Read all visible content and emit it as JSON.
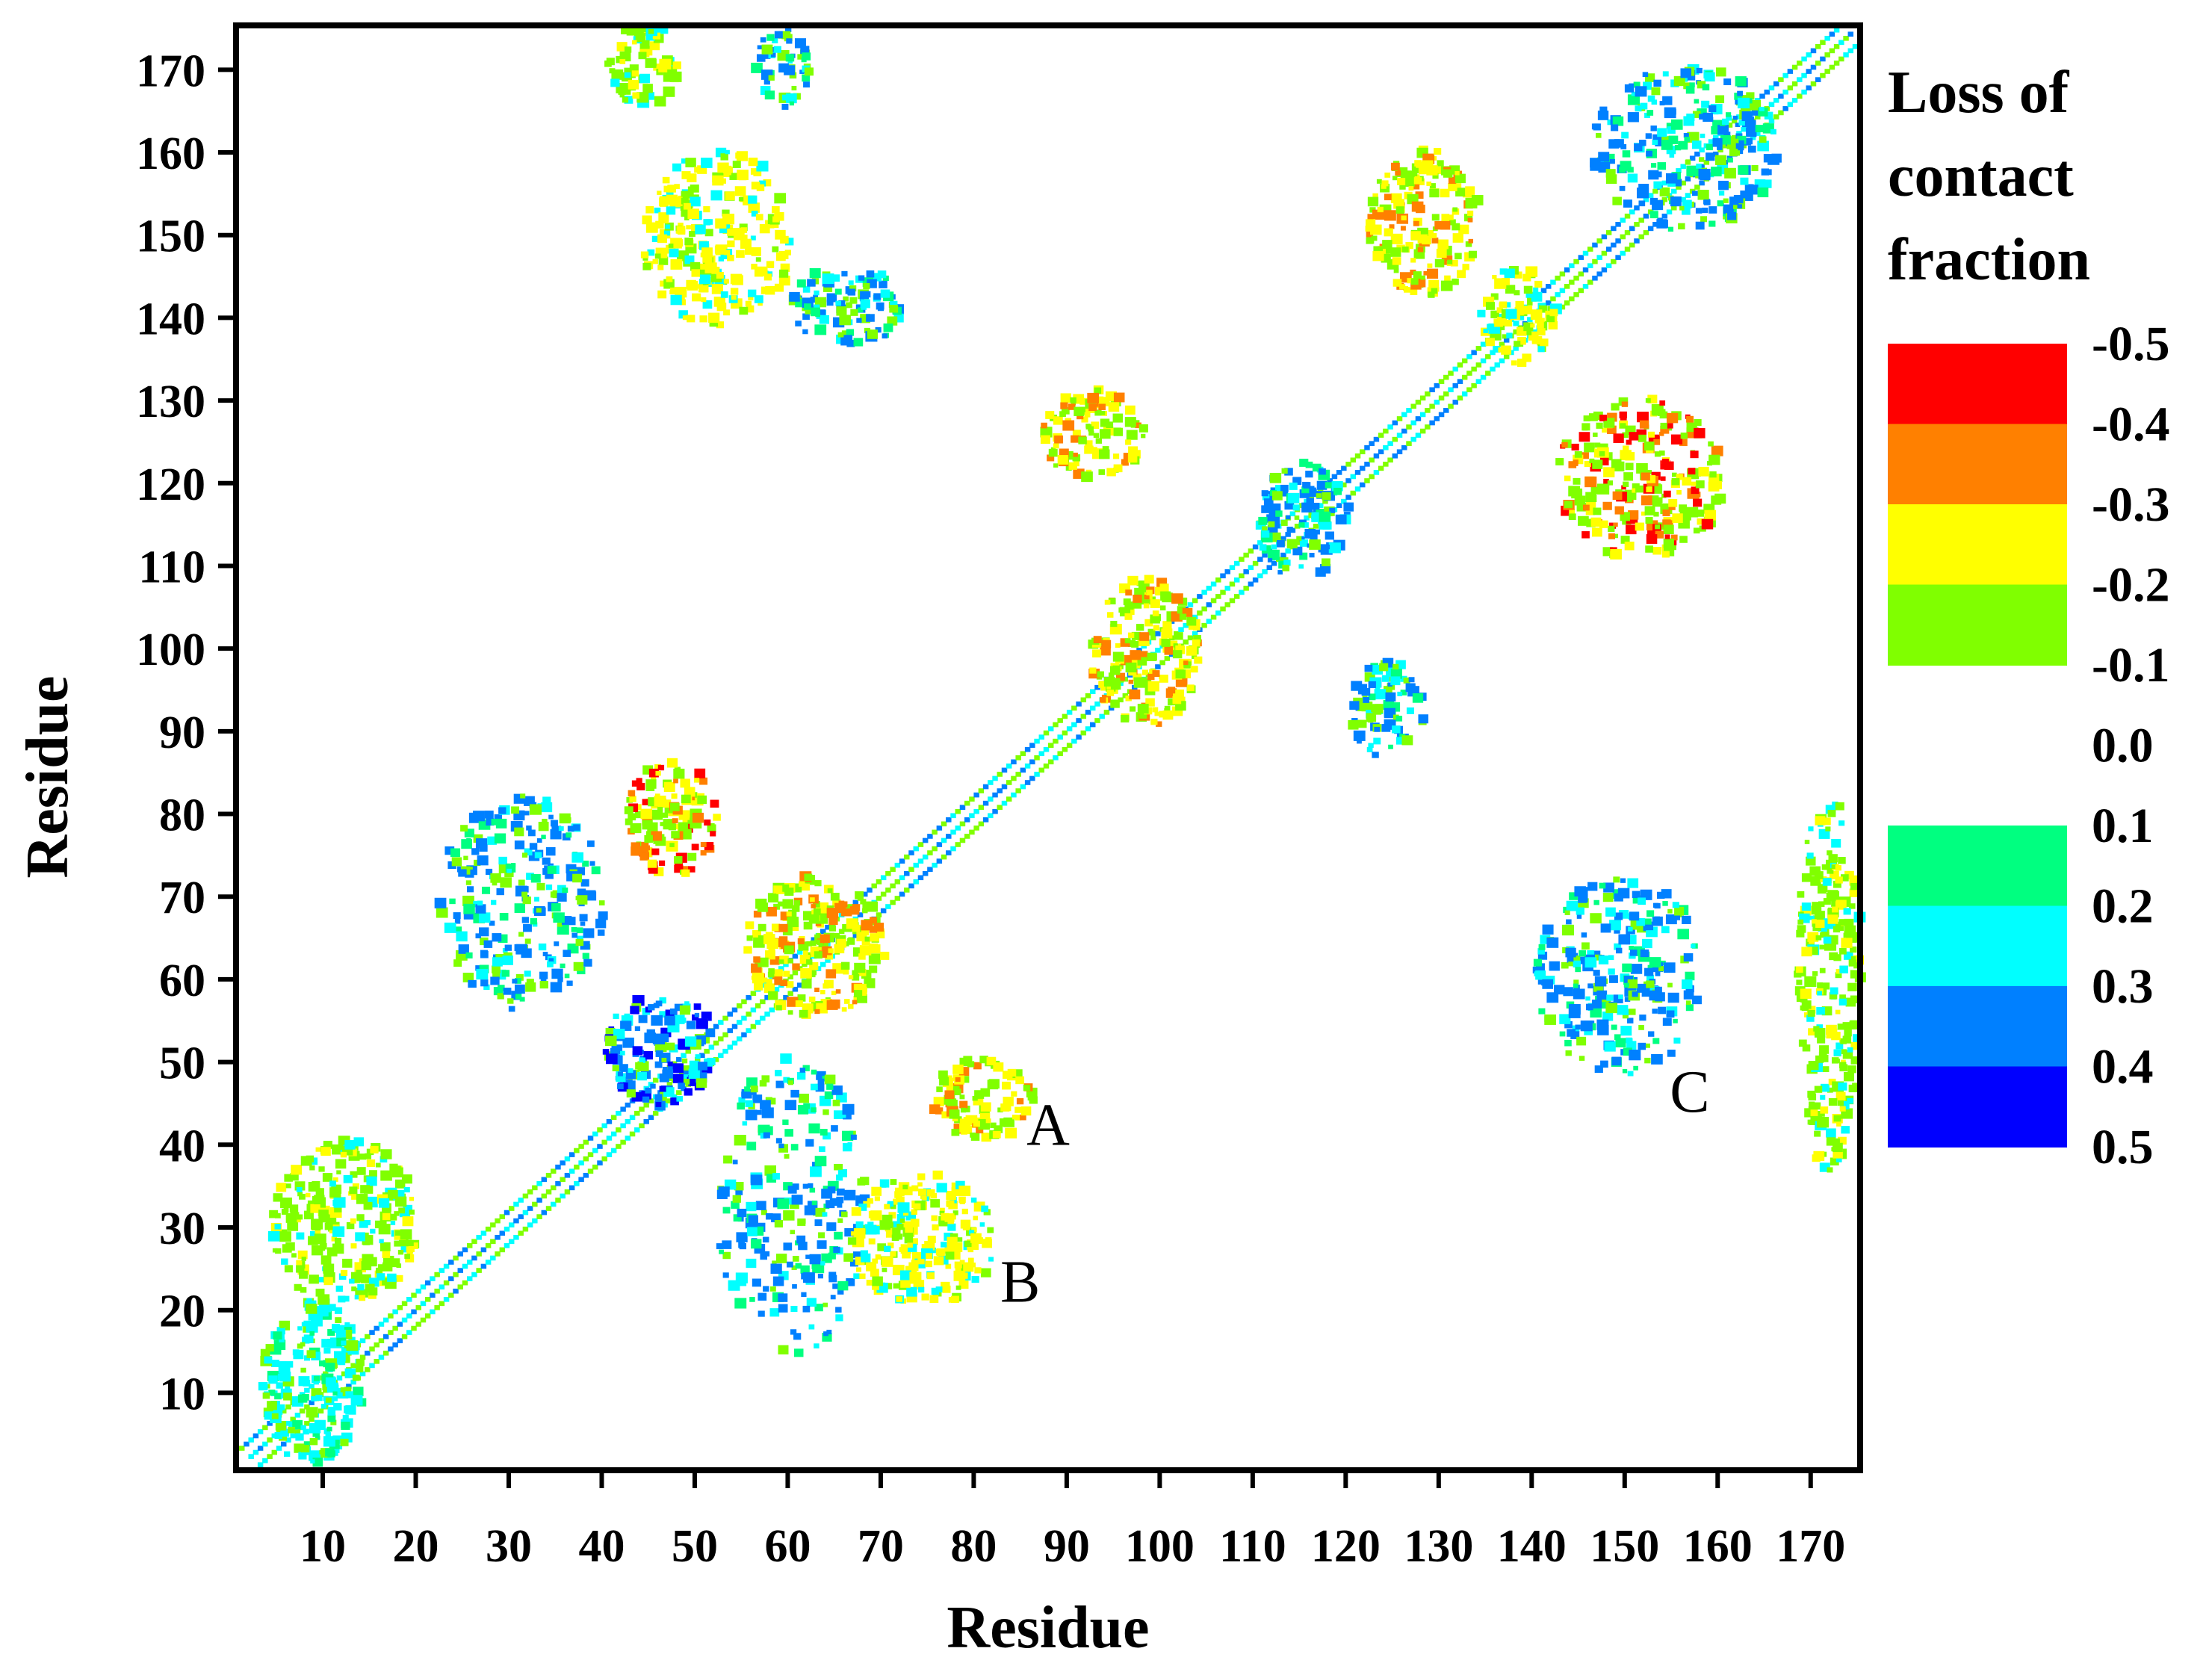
{
  "chart_data": {
    "type": "heatmap",
    "title": "",
    "xlabel": "Residue",
    "ylabel": "Residue",
    "xlim": [
      1,
      175
    ],
    "ylim": [
      1,
      175
    ],
    "x_ticks": [
      10,
      20,
      30,
      40,
      50,
      60,
      70,
      80,
      90,
      100,
      110,
      120,
      130,
      140,
      150,
      160,
      170
    ],
    "y_ticks": [
      10,
      20,
      30,
      40,
      50,
      60,
      70,
      80,
      90,
      100,
      110,
      120,
      130,
      140,
      150,
      160,
      170
    ],
    "grid": false,
    "colorbar": {
      "title_lines": [
        "Loss of",
        "contact",
        "fraction"
      ],
      "placement": "right",
      "levels": [
        {
          "label": "-0.5",
          "color": "#ff0000"
        },
        {
          "label": "-0.4",
          "color": "#ff8000"
        },
        {
          "label": "-0.3",
          "color": "#ffff00"
        },
        {
          "label": "-0.2",
          "color": "#80ff00"
        },
        {
          "label": "-0.1",
          "color": null
        },
        {
          "label": "0.0",
          "color": null
        },
        {
          "label": "0.1",
          "color": "#00ff80"
        },
        {
          "label": "0.2",
          "color": "#00ffff"
        },
        {
          "label": "0.3",
          "color": "#0080ff"
        },
        {
          "label": "0.4",
          "color": "#0000ff"
        },
        {
          "label": "0.5",
          "color": null
        }
      ]
    },
    "annotations": [
      {
        "label": "A",
        "x": 88,
        "y": 40
      },
      {
        "label": "B",
        "x": 85,
        "y": 21
      },
      {
        "label": "C",
        "x": 157,
        "y": 44
      }
    ],
    "clusters": [
      {
        "x": [
          2,
          174
        ],
        "y": [
          2,
          174
        ],
        "kind": "diagonal",
        "value": -0.2
      },
      {
        "x": [
          3,
          14
        ],
        "y": [
          1,
          21
        ],
        "value": 0.2
      },
      {
        "x": [
          4,
          20
        ],
        "y": [
          20,
          40
        ],
        "value": -0.2
      },
      {
        "x": [
          22,
          40
        ],
        "y": [
          56,
          82
        ],
        "value": 0.3
      },
      {
        "x": [
          40,
          52
        ],
        "y": [
          44,
          58
        ],
        "value": 0.4
      },
      {
        "x": [
          52,
          68
        ],
        "y": [
          14,
          50
        ],
        "value": 0.3
      },
      {
        "x": [
          66,
          82
        ],
        "y": [
          20,
          36
        ],
        "value": -0.3
      },
      {
        "x": [
          75,
          86
        ],
        "y": [
          40,
          50
        ],
        "value": -0.4
      },
      {
        "x": [
          55,
          70
        ],
        "y": [
          55,
          72
        ],
        "value": -0.4
      },
      {
        "x": [
          42,
          52
        ],
        "y": [
          72,
          86
        ],
        "value": -0.5
      },
      {
        "x": [
          92,
          104
        ],
        "y": [
          90,
          108
        ],
        "value": -0.4
      },
      {
        "x": [
          110,
          120
        ],
        "y": [
          108,
          122
        ],
        "value": 0.3
      },
      {
        "x": [
          87,
          98
        ],
        "y": [
          120,
          131
        ],
        "value": -0.4
      },
      {
        "x": [
          120,
          128
        ],
        "y": [
          86,
          98
        ],
        "value": 0.3
      },
      {
        "x": [
          122,
          134
        ],
        "y": [
          142,
          160
        ],
        "value": -0.4
      },
      {
        "x": [
          134,
          142
        ],
        "y": [
          134,
          146
        ],
        "value": -0.3
      },
      {
        "x": [
          142,
          160
        ],
        "y": [
          110,
          130
        ],
        "value": -0.5
      },
      {
        "x": [
          146,
          166
        ],
        "y": [
          150,
          170
        ],
        "value": 0.3
      },
      {
        "x": [
          44,
          60
        ],
        "y": [
          138,
          160
        ],
        "value": -0.3
      },
      {
        "x": [
          60,
          72
        ],
        "y": [
          136,
          146
        ],
        "value": 0.3
      },
      {
        "x": [
          140,
          158
        ],
        "y": [
          48,
          72
        ],
        "value": 0.3
      },
      {
        "x": [
          168,
          175
        ],
        "y": [
          36,
          82
        ],
        "value": -0.2
      },
      {
        "x": [
          40,
          48
        ],
        "y": [
          165,
          175
        ],
        "value": -0.2
      },
      {
        "x": [
          56,
          62
        ],
        "y": [
          165,
          175
        ],
        "value": 0.3
      }
    ]
  }
}
